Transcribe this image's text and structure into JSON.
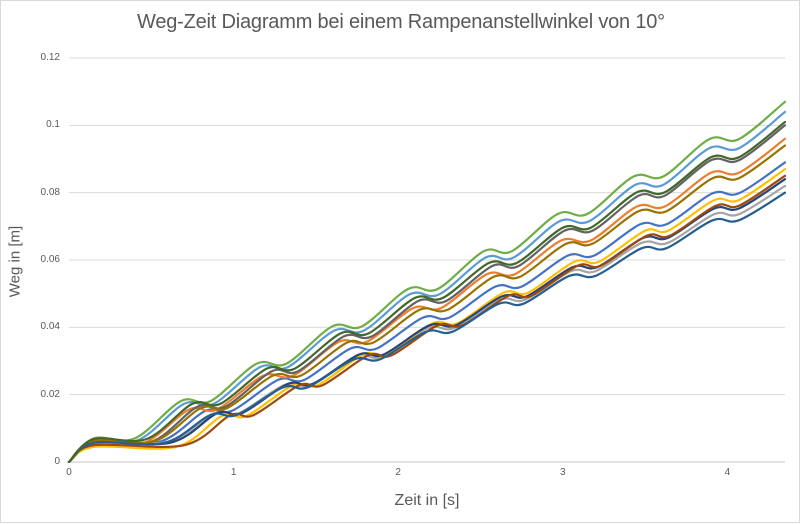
{
  "frame": {
    "background": "#ffffff",
    "border_color": "#d9d9d9"
  },
  "chart_data": {
    "type": "line",
    "title": "Weg-Zeit Diagramm bei einem Rampenanstellwinkel von 10°",
    "xlabel": "Zeit in [s]",
    "ylabel": "Weg in [m]",
    "xlim": [
      0,
      4.35
    ],
    "ylim": [
      0,
      0.12
    ],
    "x_ticks": [
      0,
      1,
      2,
      3,
      4
    ],
    "x_tick_labels": [
      "0",
      "1",
      "2",
      "3",
      "4"
    ],
    "y_ticks": [
      0,
      0.02,
      0.04,
      0.06,
      0.08,
      0.1,
      0.12
    ],
    "y_tick_labels": [
      "0",
      "0.02",
      "0.04",
      "0.06",
      "0.08",
      "0.1",
      "0.12"
    ],
    "grid": "horizontal-only",
    "grid_color": "#d9d9d9",
    "axis_color": "#c6c6c6",
    "text_color": "#595959",
    "legend": "none",
    "line_style": "smoothed",
    "line_width": 2.2,
    "series": [
      {
        "color": "#4472C4",
        "points": [
          [
            0,
            0
          ],
          [
            0.15,
            0.006
          ],
          [
            0.55,
            0.006
          ],
          [
            0.83,
            0.0152
          ],
          [
            0.99,
            0.0152
          ],
          [
            1.27,
            0.0244
          ],
          [
            1.43,
            0.0244
          ],
          [
            1.71,
            0.0337
          ],
          [
            1.87,
            0.0337
          ],
          [
            2.15,
            0.0429
          ],
          [
            2.31,
            0.0429
          ],
          [
            2.59,
            0.0521
          ],
          [
            2.75,
            0.0521
          ],
          [
            3.03,
            0.0613
          ],
          [
            3.19,
            0.0613
          ],
          [
            3.47,
            0.0706
          ],
          [
            3.63,
            0.0706
          ],
          [
            3.91,
            0.0798
          ],
          [
            4.07,
            0.0798
          ],
          [
            4.35,
            0.089
          ]
        ]
      },
      {
        "color": "#ED7D31",
        "points": [
          [
            0,
            0
          ],
          [
            0.15,
            0.0055
          ],
          [
            0.45,
            0.0055
          ],
          [
            0.73,
            0.0156
          ],
          [
            0.9,
            0.0156
          ],
          [
            1.18,
            0.0256
          ],
          [
            1.36,
            0.0256
          ],
          [
            1.64,
            0.0357
          ],
          [
            1.81,
            0.0357
          ],
          [
            2.09,
            0.0457
          ],
          [
            2.26,
            0.0457
          ],
          [
            2.54,
            0.0558
          ],
          [
            2.71,
            0.0558
          ],
          [
            2.99,
            0.0658
          ],
          [
            3.17,
            0.0658
          ],
          [
            3.45,
            0.0759
          ],
          [
            3.62,
            0.0759
          ],
          [
            3.9,
            0.0859
          ],
          [
            4.07,
            0.0859
          ],
          [
            4.35,
            0.096
          ]
        ]
      },
      {
        "color": "#A5A5A5",
        "points": [
          [
            0,
            0
          ],
          [
            0.15,
            0.006
          ],
          [
            0.6,
            0.006
          ],
          [
            0.88,
            0.0144
          ],
          [
            1.03,
            0.0144
          ],
          [
            1.31,
            0.0229
          ],
          [
            1.47,
            0.0229
          ],
          [
            1.75,
            0.0313
          ],
          [
            1.9,
            0.0313
          ],
          [
            2.18,
            0.0398
          ],
          [
            2.34,
            0.0398
          ],
          [
            2.62,
            0.0482
          ],
          [
            2.77,
            0.0482
          ],
          [
            3.05,
            0.0567
          ],
          [
            3.2,
            0.0567
          ],
          [
            3.48,
            0.0651
          ],
          [
            3.64,
            0.0651
          ],
          [
            3.92,
            0.0736
          ],
          [
            4.07,
            0.0736
          ],
          [
            4.35,
            0.082
          ]
        ]
      },
      {
        "color": "#FFC000",
        "points": [
          [
            0,
            0
          ],
          [
            0.15,
            0.0045
          ],
          [
            0.65,
            0.0045
          ],
          [
            0.93,
            0.0137
          ],
          [
            1.08,
            0.0137
          ],
          [
            1.36,
            0.0228
          ],
          [
            1.51,
            0.0228
          ],
          [
            1.79,
            0.032
          ],
          [
            1.93,
            0.032
          ],
          [
            2.21,
            0.0412
          ],
          [
            2.36,
            0.0412
          ],
          [
            2.64,
            0.0503
          ],
          [
            2.79,
            0.0503
          ],
          [
            3.07,
            0.0595
          ],
          [
            3.22,
            0.0595
          ],
          [
            3.5,
            0.0687
          ],
          [
            3.64,
            0.0687
          ],
          [
            3.92,
            0.0778
          ],
          [
            4.07,
            0.0778
          ],
          [
            4.35,
            0.087
          ]
        ]
      },
      {
        "color": "#5B9BD5",
        "points": [
          [
            0,
            0
          ],
          [
            0.15,
            0.0065
          ],
          [
            0.42,
            0.0065
          ],
          [
            0.7,
            0.0173
          ],
          [
            0.88,
            0.0173
          ],
          [
            1.16,
            0.0282
          ],
          [
            1.33,
            0.0282
          ],
          [
            1.61,
            0.039
          ],
          [
            1.79,
            0.039
          ],
          [
            2.07,
            0.0498
          ],
          [
            2.25,
            0.0498
          ],
          [
            2.53,
            0.0607
          ],
          [
            2.7,
            0.0607
          ],
          [
            2.98,
            0.0715
          ],
          [
            3.16,
            0.0715
          ],
          [
            3.44,
            0.0823
          ],
          [
            3.61,
            0.0823
          ],
          [
            3.89,
            0.0932
          ],
          [
            4.07,
            0.0932
          ],
          [
            4.35,
            0.104
          ]
        ]
      },
      {
        "color": "#70AD47",
        "points": [
          [
            0,
            0
          ],
          [
            0.15,
            0.007
          ],
          [
            0.4,
            0.007
          ],
          [
            0.68,
            0.0181
          ],
          [
            0.86,
            0.0181
          ],
          [
            1.14,
            0.0292
          ],
          [
            1.32,
            0.0292
          ],
          [
            1.6,
            0.0403
          ],
          [
            1.78,
            0.0403
          ],
          [
            2.06,
            0.0514
          ],
          [
            2.24,
            0.0514
          ],
          [
            2.52,
            0.0626
          ],
          [
            2.69,
            0.0626
          ],
          [
            2.97,
            0.0737
          ],
          [
            3.15,
            0.0737
          ],
          [
            3.43,
            0.0848
          ],
          [
            3.61,
            0.0848
          ],
          [
            3.89,
            0.0959
          ],
          [
            4.07,
            0.0959
          ],
          [
            4.35,
            0.107
          ]
        ]
      },
      {
        "color": "#264478",
        "points": [
          [
            0,
            0
          ],
          [
            0.15,
            0.0058
          ],
          [
            0.62,
            0.0058
          ],
          [
            0.9,
            0.0145
          ],
          [
            1.05,
            0.0145
          ],
          [
            1.33,
            0.0232
          ],
          [
            1.48,
            0.0232
          ],
          [
            1.76,
            0.0319
          ],
          [
            1.91,
            0.0319
          ],
          [
            2.19,
            0.0406
          ],
          [
            2.35,
            0.0406
          ],
          [
            2.63,
            0.0492
          ],
          [
            2.78,
            0.0492
          ],
          [
            3.06,
            0.0579
          ],
          [
            3.21,
            0.0579
          ],
          [
            3.49,
            0.0666
          ],
          [
            3.64,
            0.0666
          ],
          [
            3.92,
            0.0753
          ],
          [
            4.07,
            0.0753
          ],
          [
            4.35,
            0.084
          ]
        ]
      },
      {
        "color": "#9E480E",
        "points": [
          [
            0,
            0
          ],
          [
            0.15,
            0.005
          ],
          [
            0.7,
            0.005
          ],
          [
            0.98,
            0.0139
          ],
          [
            1.12,
            0.0139
          ],
          [
            1.4,
            0.0228
          ],
          [
            1.54,
            0.0228
          ],
          [
            1.82,
            0.0317
          ],
          [
            1.96,
            0.0317
          ],
          [
            2.24,
            0.0406
          ],
          [
            2.39,
            0.0406
          ],
          [
            2.67,
            0.0494
          ],
          [
            2.81,
            0.0494
          ],
          [
            3.09,
            0.0583
          ],
          [
            3.23,
            0.0583
          ],
          [
            3.51,
            0.0672
          ],
          [
            3.65,
            0.0672
          ],
          [
            3.93,
            0.0761
          ],
          [
            4.07,
            0.0761
          ],
          [
            4.35,
            0.085
          ]
        ]
      },
      {
        "color": "#636363",
        "points": [
          [
            0,
            0
          ],
          [
            0.15,
            0.006
          ],
          [
            0.5,
            0.006
          ],
          [
            0.78,
            0.0164
          ],
          [
            0.95,
            0.0164
          ],
          [
            1.23,
            0.0269
          ],
          [
            1.39,
            0.0269
          ],
          [
            1.67,
            0.0373
          ],
          [
            1.84,
            0.0373
          ],
          [
            2.12,
            0.0478
          ],
          [
            2.29,
            0.0478
          ],
          [
            2.57,
            0.0582
          ],
          [
            2.73,
            0.0582
          ],
          [
            3.01,
            0.0687
          ],
          [
            3.18,
            0.0687
          ],
          [
            3.46,
            0.0791
          ],
          [
            3.62,
            0.0791
          ],
          [
            3.9,
            0.0896
          ],
          [
            4.07,
            0.0896
          ],
          [
            4.35,
            0.1
          ]
        ]
      },
      {
        "color": "#997300",
        "points": [
          [
            0,
            0
          ],
          [
            0.15,
            0.0062
          ],
          [
            0.52,
            0.0062
          ],
          [
            0.8,
            0.016
          ],
          [
            0.96,
            0.016
          ],
          [
            1.24,
            0.0257
          ],
          [
            1.41,
            0.0257
          ],
          [
            1.69,
            0.0355
          ],
          [
            1.85,
            0.0355
          ],
          [
            2.13,
            0.0452
          ],
          [
            2.3,
            0.0452
          ],
          [
            2.58,
            0.055
          ],
          [
            2.74,
            0.055
          ],
          [
            3.02,
            0.0648
          ],
          [
            3.18,
            0.0648
          ],
          [
            3.46,
            0.0745
          ],
          [
            3.63,
            0.0745
          ],
          [
            3.91,
            0.0843
          ],
          [
            4.07,
            0.0843
          ],
          [
            4.35,
            0.094
          ]
        ]
      },
      {
        "color": "#255E91",
        "points": [
          [
            0,
            0
          ],
          [
            0.15,
            0.0057
          ],
          [
            0.58,
            0.0057
          ],
          [
            0.86,
            0.014
          ],
          [
            1.02,
            0.014
          ],
          [
            1.3,
            0.0222
          ],
          [
            1.45,
            0.0222
          ],
          [
            1.73,
            0.0305
          ],
          [
            1.89,
            0.0305
          ],
          [
            2.17,
            0.0387
          ],
          [
            2.33,
            0.0387
          ],
          [
            2.61,
            0.047
          ],
          [
            2.76,
            0.047
          ],
          [
            3.04,
            0.0553
          ],
          [
            3.2,
            0.0553
          ],
          [
            3.48,
            0.0635
          ],
          [
            3.63,
            0.0635
          ],
          [
            3.91,
            0.0718
          ],
          [
            4.07,
            0.0718
          ],
          [
            4.35,
            0.08
          ]
        ]
      },
      {
        "color": "#43682B",
        "points": [
          [
            0,
            0
          ],
          [
            0.15,
            0.0068
          ],
          [
            0.47,
            0.0068
          ],
          [
            0.75,
            0.0173
          ],
          [
            0.92,
            0.0173
          ],
          [
            1.2,
            0.0277
          ],
          [
            1.37,
            0.0277
          ],
          [
            1.65,
            0.0382
          ],
          [
            1.82,
            0.0382
          ],
          [
            2.1,
            0.0487
          ],
          [
            2.27,
            0.0487
          ],
          [
            2.55,
            0.0591
          ],
          [
            2.72,
            0.0591
          ],
          [
            3.0,
            0.0696
          ],
          [
            3.17,
            0.0696
          ],
          [
            3.45,
            0.0801
          ],
          [
            3.62,
            0.0801
          ],
          [
            3.9,
            0.0905
          ],
          [
            4.07,
            0.0905
          ],
          [
            4.35,
            0.101
          ]
        ]
      }
    ]
  }
}
